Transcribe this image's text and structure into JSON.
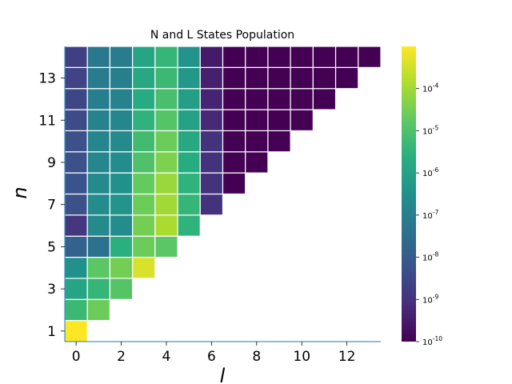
{
  "chart_data": {
    "type": "heatmap",
    "title": "N and L States Population",
    "xlabel": "l",
    "ylabel": "n",
    "x_ticks": [
      "0",
      "2",
      "4",
      "6",
      "8",
      "10",
      "12"
    ],
    "x_tick_values": [
      0,
      2,
      4,
      6,
      8,
      10,
      12
    ],
    "y_ticks": [
      "1",
      "3",
      "5",
      "7",
      "9",
      "11",
      "13"
    ],
    "y_tick_values": [
      1,
      3,
      5,
      7,
      9,
      11,
      13
    ],
    "xlim": [
      -0.5,
      13.5
    ],
    "ylim": [
      0.5,
      14.5
    ],
    "color_scale": "log",
    "colormap": "viridis",
    "colorbar": {
      "ticks": [
        {
          "base": "10",
          "exp": "-10",
          "value": 1e-10
        },
        {
          "base": "10",
          "exp": "-9",
          "value": 1e-09
        },
        {
          "base": "10",
          "exp": "-8",
          "value": 1e-08
        },
        {
          "base": "10",
          "exp": "-7",
          "value": 1e-07
        },
        {
          "base": "10",
          "exp": "-6",
          "value": 1e-06
        },
        {
          "base": "10",
          "exp": "-5",
          "value": 1e-05
        },
        {
          "base": "10",
          "exp": "-4",
          "value": 0.0001
        }
      ],
      "range": [
        1e-10,
        0.001
      ]
    },
    "rows": [
      {
        "n": 1,
        "log10_values": [
          -3.0
        ]
      },
      {
        "n": 2,
        "log10_values": [
          -5.3,
          -4.6
        ]
      },
      {
        "n": 3,
        "log10_values": [
          -5.9,
          -5.4,
          -4.9
        ]
      },
      {
        "n": 4,
        "log10_values": [
          -6.5,
          -4.8,
          -4.5,
          -3.4
        ]
      },
      {
        "n": 5,
        "log10_values": [
          -7.8,
          -7.4,
          -5.6,
          -4.6,
          -4.8
        ]
      },
      {
        "n": 6,
        "log10_values": [
          -8.9,
          -6.7,
          -6.6,
          -4.5,
          -3.9,
          -5.5
        ]
      },
      {
        "n": 7,
        "log10_values": [
          -8.3,
          -6.6,
          -6.4,
          -4.6,
          -4.0,
          -5.4,
          -9.0
        ]
      },
      {
        "n": 8,
        "log10_values": [
          -8.2,
          -6.7,
          -6.5,
          -4.7,
          -4.1,
          -5.5,
          -9.0,
          -10.0
        ]
      },
      {
        "n": 9,
        "log10_values": [
          -8.3,
          -6.8,
          -6.6,
          -5.0,
          -4.4,
          -5.7,
          -9.0,
          -10.0,
          -10.0
        ]
      },
      {
        "n": 10,
        "log10_values": [
          -8.3,
          -6.8,
          -6.7,
          -5.2,
          -4.6,
          -5.8,
          -9.0,
          -10.0,
          -10.0,
          -10.0
        ]
      },
      {
        "n": 11,
        "log10_values": [
          -8.4,
          -6.9,
          -6.8,
          -5.5,
          -4.9,
          -6.0,
          -9.2,
          -10.0,
          -10.0,
          -10.0,
          -10.0
        ]
      },
      {
        "n": 12,
        "log10_values": [
          -8.5,
          -7.0,
          -6.9,
          -5.7,
          -5.1,
          -6.1,
          -9.3,
          -10.0,
          -10.0,
          -10.0,
          -10.0,
          -10.0
        ]
      },
      {
        "n": 13,
        "log10_values": [
          -8.6,
          -7.1,
          -7.0,
          -5.8,
          -5.3,
          -6.3,
          -9.4,
          -10.0,
          -10.0,
          -10.0,
          -10.0,
          -10.0,
          -10.0
        ]
      },
      {
        "n": 14,
        "log10_values": [
          -8.7,
          -7.2,
          -7.1,
          -5.9,
          -5.4,
          -6.4,
          -9.5,
          -10.0,
          -10.0,
          -10.0,
          -10.0,
          -10.0,
          -10.0,
          -10.0
        ]
      }
    ]
  }
}
